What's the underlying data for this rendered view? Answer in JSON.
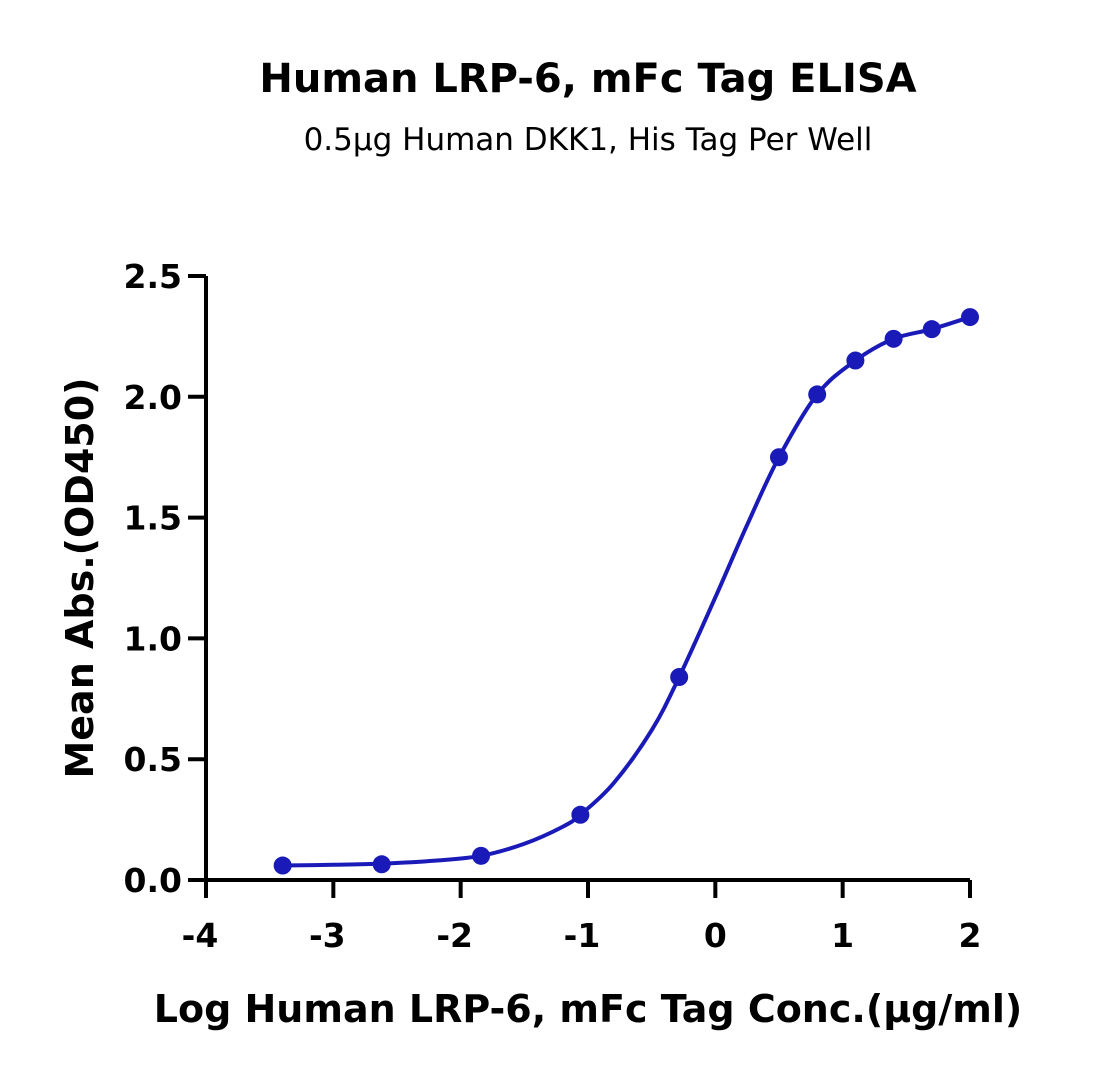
{
  "chart_data": {
    "type": "line",
    "title": "Human LRP-6, mFc Tag ELISA",
    "subtitle": "0.5μg Human DKK1, His Tag Per Well",
    "xlabel": "Log Human LRP-6, mFc Tag Conc.(μg/ml)",
    "ylabel": "Mean Abs.(OD450)",
    "xlim": [
      -4,
      2
    ],
    "ylim": [
      0,
      2.5
    ],
    "x_ticks": [
      -4,
      -3,
      -2,
      -1,
      0,
      1,
      2
    ],
    "x_tick_labels": [
      "-4",
      "-3",
      "-2",
      "-1",
      "0",
      "1",
      "2"
    ],
    "y_ticks": [
      0,
      0.5,
      1.0,
      1.5,
      2.0,
      2.5
    ],
    "y_tick_labels": [
      "0.0",
      "0.5",
      "1.0",
      "1.5",
      "2.0",
      "2.5"
    ],
    "grid": false,
    "series": [
      {
        "color": "#1a1ab8",
        "points": [
          {
            "x": -3.398,
            "y": 0.06
          },
          {
            "x": -2.62,
            "y": 0.065
          },
          {
            "x": -1.84,
            "y": 0.1
          },
          {
            "x": -1.06,
            "y": 0.27
          },
          {
            "x": -0.284,
            "y": 0.84
          },
          {
            "x": 0.5,
            "y": 1.75
          },
          {
            "x": 0.8,
            "y": 2.01
          },
          {
            "x": 1.1,
            "y": 2.15
          },
          {
            "x": 1.4,
            "y": 2.24
          },
          {
            "x": 1.7,
            "y": 2.28
          },
          {
            "x": 2.0,
            "y": 2.33
          }
        ],
        "curve": [
          [
            -3.4,
            0.06
          ],
          [
            -3.0,
            0.063
          ],
          [
            -2.6,
            0.068
          ],
          [
            -2.2,
            0.08
          ],
          [
            -1.84,
            0.1
          ],
          [
            -1.5,
            0.15
          ],
          [
            -1.2,
            0.22
          ],
          [
            -1.06,
            0.27
          ],
          [
            -0.8,
            0.4
          ],
          [
            -0.5,
            0.62
          ],
          [
            -0.284,
            0.84
          ],
          [
            0.0,
            1.17
          ],
          [
            0.25,
            1.47
          ],
          [
            0.5,
            1.75
          ],
          [
            0.8,
            2.01
          ],
          [
            1.1,
            2.15
          ],
          [
            1.4,
            2.24
          ],
          [
            1.7,
            2.28
          ],
          [
            2.0,
            2.33
          ]
        ]
      }
    ]
  }
}
